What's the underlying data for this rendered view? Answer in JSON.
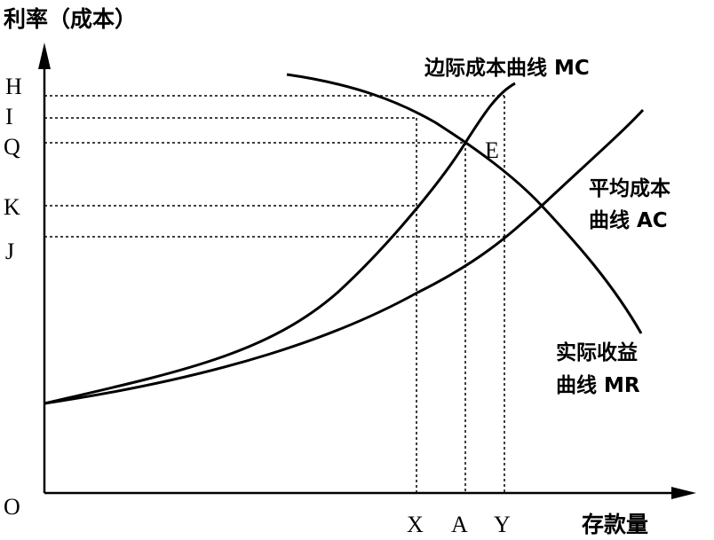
{
  "y_axis_label": "利率（成本）",
  "x_axis_label": "存款量",
  "origin_label": "O",
  "y_ticks": [
    "H",
    "I",
    "Q",
    "K",
    "J"
  ],
  "x_ticks": [
    "X",
    "A",
    "Y"
  ],
  "curves": {
    "mc": "边际成本曲线 MC",
    "ac_line1": "平均成本",
    "ac_line2": "曲线 AC",
    "mr_line1": "实际收益",
    "mr_line2": "曲线 MR"
  },
  "equilibrium_label": "E"
}
